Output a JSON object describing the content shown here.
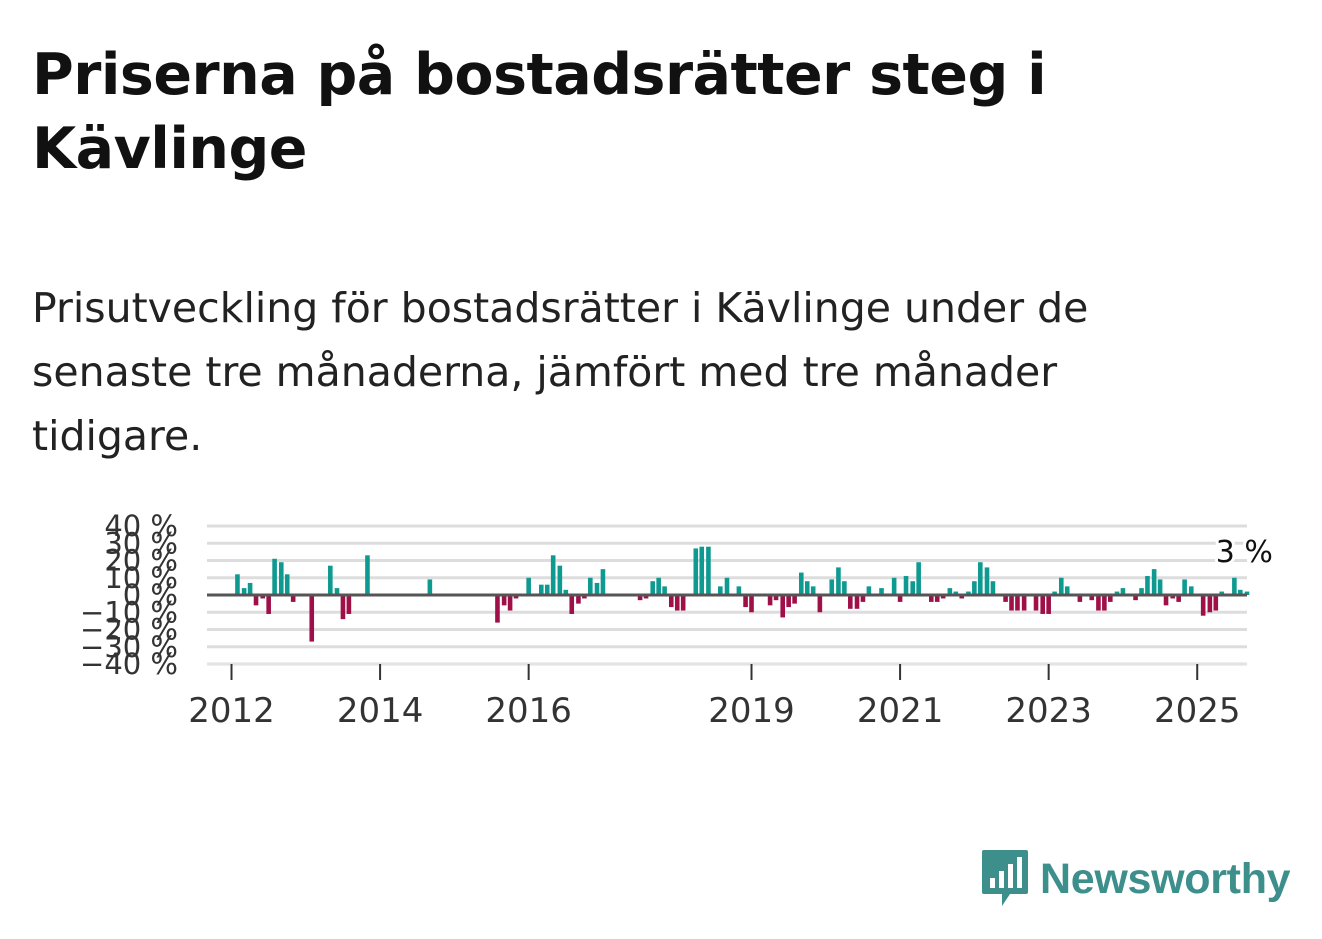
{
  "title": "Priserna på bostadsrätter steg i Kävlinge",
  "subtitle": "Prisutveckling för bostadsrätter i Kävlinge under de senaste tre månaderna, jämfört med tre månader tidigare.",
  "brand": {
    "name": "Newsworthy",
    "color": "#3d8f8c"
  },
  "colors": {
    "positive": "#0f9a91",
    "negative": "#a01048",
    "zero_line": "#555555",
    "grid": "#dddddd"
  },
  "chart_data": {
    "type": "bar",
    "title": "Priserna på bostadsrätter steg i Kävlinge",
    "xlabel": "",
    "ylabel": "",
    "ylim": [
      -40,
      40
    ],
    "yticks": [
      40,
      30,
      20,
      10,
      0,
      -10,
      -20,
      -30,
      -40
    ],
    "ytick_labels": [
      "40 %",
      "30 %",
      "20 %",
      "10 %",
      "0 %",
      "−10 %",
      "−20 %",
      "−30 %",
      "−40 %"
    ],
    "xlim": [
      2011.67,
      2025.67
    ],
    "xticks": [
      2012,
      2014,
      2016,
      2019,
      2021,
      2023,
      2025
    ],
    "xtick_labels": [
      "2012",
      "2014",
      "2016",
      "2019",
      "2021",
      "2023",
      "2025"
    ],
    "annotation": {
      "text": "3 %",
      "x": 2025.58,
      "value": 3
    },
    "points": [
      {
        "x": 2012.08,
        "value": 12
      },
      {
        "x": 2012.17,
        "value": 4
      },
      {
        "x": 2012.25,
        "value": 7
      },
      {
        "x": 2012.33,
        "value": -6
      },
      {
        "x": 2012.42,
        "value": -2
      },
      {
        "x": 2012.5,
        "value": -11
      },
      {
        "x": 2012.58,
        "value": 21
      },
      {
        "x": 2012.67,
        "value": 19
      },
      {
        "x": 2012.75,
        "value": 12
      },
      {
        "x": 2012.83,
        "value": -4
      },
      {
        "x": 2013.08,
        "value": -27
      },
      {
        "x": 2013.33,
        "value": 17
      },
      {
        "x": 2013.42,
        "value": 4
      },
      {
        "x": 2013.5,
        "value": -14
      },
      {
        "x": 2013.58,
        "value": -11
      },
      {
        "x": 2013.83,
        "value": 23
      },
      {
        "x": 2014.67,
        "value": 9
      },
      {
        "x": 2015.58,
        "value": -16
      },
      {
        "x": 2015.67,
        "value": -6
      },
      {
        "x": 2015.75,
        "value": -9
      },
      {
        "x": 2015.83,
        "value": -2
      },
      {
        "x": 2016.0,
        "value": 10
      },
      {
        "x": 2016.17,
        "value": 6
      },
      {
        "x": 2016.25,
        "value": 6
      },
      {
        "x": 2016.33,
        "value": 23
      },
      {
        "x": 2016.42,
        "value": 17
      },
      {
        "x": 2016.5,
        "value": 3
      },
      {
        "x": 2016.58,
        "value": -11
      },
      {
        "x": 2016.67,
        "value": -5
      },
      {
        "x": 2016.75,
        "value": -2
      },
      {
        "x": 2016.83,
        "value": 10
      },
      {
        "x": 2016.92,
        "value": 7
      },
      {
        "x": 2017.0,
        "value": 15
      },
      {
        "x": 2017.5,
        "value": -3
      },
      {
        "x": 2017.58,
        "value": -2
      },
      {
        "x": 2017.67,
        "value": 8
      },
      {
        "x": 2017.75,
        "value": 10
      },
      {
        "x": 2017.83,
        "value": 5
      },
      {
        "x": 2017.92,
        "value": -7
      },
      {
        "x": 2018.0,
        "value": -9
      },
      {
        "x": 2018.08,
        "value": -9
      },
      {
        "x": 2018.25,
        "value": 27
      },
      {
        "x": 2018.33,
        "value": 28
      },
      {
        "x": 2018.42,
        "value": 28
      },
      {
        "x": 2018.58,
        "value": 5
      },
      {
        "x": 2018.67,
        "value": 10
      },
      {
        "x": 2018.83,
        "value": 5
      },
      {
        "x": 2018.92,
        "value": -7
      },
      {
        "x": 2019.0,
        "value": -10
      },
      {
        "x": 2019.25,
        "value": -6
      },
      {
        "x": 2019.33,
        "value": -3
      },
      {
        "x": 2019.42,
        "value": -13
      },
      {
        "x": 2019.5,
        "value": -7
      },
      {
        "x": 2019.58,
        "value": -5
      },
      {
        "x": 2019.67,
        "value": 13
      },
      {
        "x": 2019.75,
        "value": 8
      },
      {
        "x": 2019.83,
        "value": 5
      },
      {
        "x": 2019.92,
        "value": -10
      },
      {
        "x": 2020.08,
        "value": 9
      },
      {
        "x": 2020.17,
        "value": 16
      },
      {
        "x": 2020.25,
        "value": 8
      },
      {
        "x": 2020.33,
        "value": -8
      },
      {
        "x": 2020.42,
        "value": -8
      },
      {
        "x": 2020.5,
        "value": -4
      },
      {
        "x": 2020.58,
        "value": 5
      },
      {
        "x": 2020.75,
        "value": 4
      },
      {
        "x": 2020.92,
        "value": 10
      },
      {
        "x": 2021.0,
        "value": -4
      },
      {
        "x": 2021.08,
        "value": 11
      },
      {
        "x": 2021.17,
        "value": 8
      },
      {
        "x": 2021.25,
        "value": 19
      },
      {
        "x": 2021.42,
        "value": -4
      },
      {
        "x": 2021.5,
        "value": -4
      },
      {
        "x": 2021.58,
        "value": -2
      },
      {
        "x": 2021.67,
        "value": 4
      },
      {
        "x": 2021.75,
        "value": 2
      },
      {
        "x": 2021.83,
        "value": -2
      },
      {
        "x": 2021.92,
        "value": 2
      },
      {
        "x": 2022.0,
        "value": 8
      },
      {
        "x": 2022.08,
        "value": 19
      },
      {
        "x": 2022.17,
        "value": 16
      },
      {
        "x": 2022.25,
        "value": 8
      },
      {
        "x": 2022.42,
        "value": -4
      },
      {
        "x": 2022.5,
        "value": -9
      },
      {
        "x": 2022.58,
        "value": -9
      },
      {
        "x": 2022.67,
        "value": -9
      },
      {
        "x": 2022.83,
        "value": -9
      },
      {
        "x": 2022.92,
        "value": -11
      },
      {
        "x": 2023.0,
        "value": -11
      },
      {
        "x": 2023.08,
        "value": 2
      },
      {
        "x": 2023.17,
        "value": 10
      },
      {
        "x": 2023.25,
        "value": 5
      },
      {
        "x": 2023.42,
        "value": -4
      },
      {
        "x": 2023.58,
        "value": -3
      },
      {
        "x": 2023.67,
        "value": -9
      },
      {
        "x": 2023.75,
        "value": -9
      },
      {
        "x": 2023.83,
        "value": -4
      },
      {
        "x": 2023.92,
        "value": 2
      },
      {
        "x": 2024.0,
        "value": 4
      },
      {
        "x": 2024.17,
        "value": -3
      },
      {
        "x": 2024.25,
        "value": 4
      },
      {
        "x": 2024.33,
        "value": 11
      },
      {
        "x": 2024.42,
        "value": 15
      },
      {
        "x": 2024.5,
        "value": 9
      },
      {
        "x": 2024.58,
        "value": -6
      },
      {
        "x": 2024.67,
        "value": -2
      },
      {
        "x": 2024.75,
        "value": -4
      },
      {
        "x": 2024.83,
        "value": 9
      },
      {
        "x": 2024.92,
        "value": 5
      },
      {
        "x": 2025.08,
        "value": -12
      },
      {
        "x": 2025.17,
        "value": -10
      },
      {
        "x": 2025.25,
        "value": -9
      },
      {
        "x": 2025.33,
        "value": 2
      },
      {
        "x": 2025.5,
        "value": 10
      },
      {
        "x": 2025.58,
        "value": 3
      },
      {
        "x": 2025.67,
        "value": 2
      }
    ]
  }
}
